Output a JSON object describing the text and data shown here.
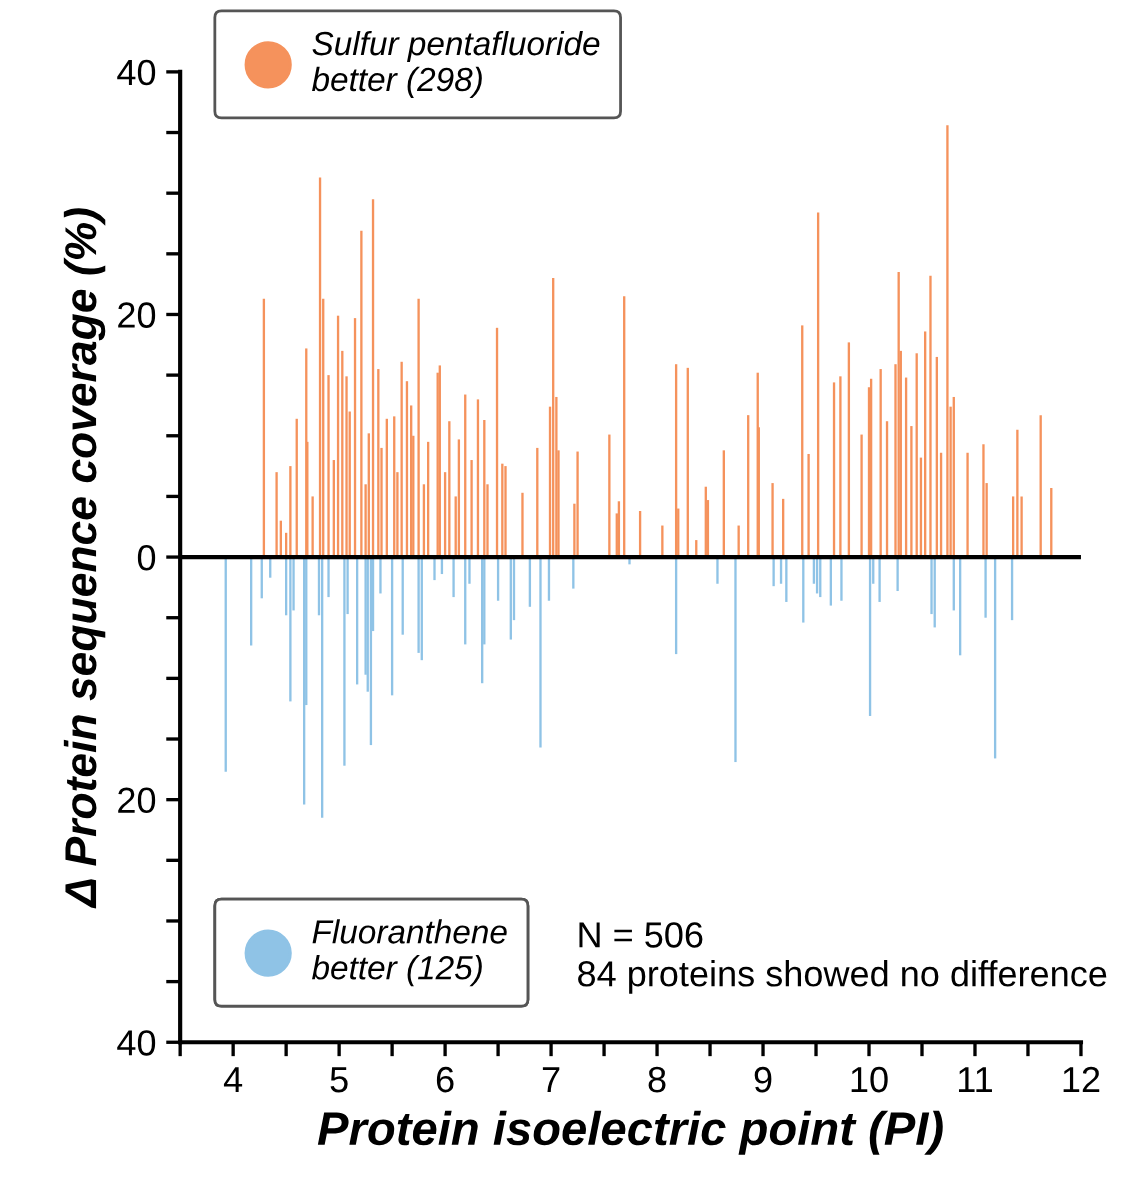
{
  "chart_data": {
    "type": "bar",
    "xlabel": "Protein isoelectric point (PI)",
    "ylabel": "Δ Protein sequence coverage (%)",
    "xlim": [
      3.5,
      12
    ],
    "ylim": [
      -40,
      40
    ],
    "xticks": [
      {
        "value": 3.5,
        "label": null
      },
      4,
      {
        "value": 4.5,
        "label": null
      },
      5,
      {
        "value": 5.5,
        "label": null
      },
      6,
      {
        "value": 6.5,
        "label": null
      },
      7,
      {
        "value": 7.5,
        "label": null
      },
      8,
      {
        "value": 8.5,
        "label": null
      },
      9,
      {
        "value": 9.5,
        "label": null
      },
      10,
      {
        "value": 10.5,
        "label": null
      },
      11,
      {
        "value": 11.5,
        "label": null
      },
      12
    ],
    "yticks": [
      {
        "value": -40,
        "label": "40"
      },
      {
        "value": -35,
        "label": null
      },
      {
        "value": -30,
        "label": null
      },
      {
        "value": -25,
        "label": null
      },
      {
        "value": -20,
        "label": "20"
      },
      {
        "value": -15,
        "label": null
      },
      {
        "value": -10,
        "label": null
      },
      {
        "value": -5,
        "label": null
      },
      0,
      {
        "value": 5,
        "label": null
      },
      {
        "value": 10,
        "label": null
      },
      {
        "value": 15,
        "label": null
      },
      20,
      {
        "value": 25,
        "label": null
      },
      {
        "value": 30,
        "label": null
      },
      {
        "value": 35,
        "label": null
      },
      40
    ],
    "grid": false,
    "legend": "left",
    "ref_lines": [
      {
        "axis": "y",
        "value": 0,
        "color": "#000000"
      }
    ],
    "annotations": [
      "N = 506\n84 proteins showed no difference"
    ],
    "series": [
      {
        "name": "Sulfur pentafluoride better (298)",
        "color": "#f5925c",
        "x": [
          4.29,
          4.41,
          4.45,
          4.5,
          4.54,
          4.6,
          4.69,
          4.7,
          4.75,
          4.82,
          4.85,
          4.9,
          4.95,
          4.99,
          5.03,
          5.07,
          5.1,
          5.15,
          5.21,
          5.25,
          5.28,
          5.32,
          5.37,
          5.4,
          5.45,
          5.52,
          5.55,
          5.59,
          5.64,
          5.68,
          5.7,
          5.75,
          5.8,
          5.84,
          5.93,
          5.95,
          6.0,
          6.04,
          6.1,
          6.13,
          6.19,
          6.25,
          6.31,
          6.37,
          6.4,
          6.49,
          6.54,
          6.57,
          6.73,
          6.87,
          6.99,
          7.02,
          7.05,
          7.07,
          7.22,
          7.25,
          7.55,
          7.62,
          7.64,
          7.69,
          7.84,
          8.05,
          8.18,
          8.2,
          8.29,
          8.37,
          8.46,
          8.48,
          8.63,
          8.77,
          8.86,
          8.95,
          8.96,
          9.09,
          9.19,
          9.37,
          9.43,
          9.52,
          9.67,
          9.73,
          9.81,
          9.93,
          10.0,
          10.02,
          10.11,
          10.17,
          10.25,
          10.28,
          10.3,
          10.35,
          10.4,
          10.45,
          10.49,
          10.53,
          10.58,
          10.64,
          10.68,
          10.74,
          10.77,
          10.8,
          10.93,
          11.08,
          11.11,
          11.36,
          11.4,
          11.44,
          11.62,
          11.72
        ],
        "values": [
          21.3,
          7,
          3,
          2,
          7.5,
          11.4,
          17.2,
          9.5,
          5,
          31.3,
          21.3,
          15,
          8,
          19.9,
          17,
          14.9,
          12,
          19.7,
          26.9,
          6,
          10.2,
          29.5,
          15.5,
          9,
          11.4,
          11.6,
          7,
          16.1,
          14.5,
          12.5,
          10,
          21.3,
          6,
          9.5,
          15.2,
          15.8,
          7,
          11.2,
          5,
          9.7,
          13.4,
          8,
          13,
          11.3,
          6,
          18.9,
          7.7,
          7.5,
          5.3,
          9,
          12.4,
          23,
          13.2,
          8.8,
          4.4,
          8.7,
          10.1,
          3.6,
          4.6,
          21.5,
          3.8,
          2.6,
          15.9,
          4,
          15.6,
          1.4,
          5.8,
          4.7,
          8.8,
          2.6,
          11.7,
          15.2,
          10.7,
          6.1,
          4.8,
          19.1,
          8.5,
          28.4,
          14.4,
          14.9,
          17.7,
          10.1,
          14,
          14.7,
          15.5,
          11.2,
          15.9,
          23.5,
          17,
          14.8,
          10.8,
          16.8,
          8.2,
          18.6,
          23.2,
          16.5,
          8.6,
          35.6,
          12.4,
          13.2,
          8.6,
          9.3,
          6.1,
          5,
          10.5,
          5,
          11.7,
          5.7
        ]
      },
      {
        "name": "Fluoranthene better (125)",
        "color": "#8fc3e6",
        "x": [
          3.93,
          4.17,
          4.27,
          4.35,
          4.5,
          4.54,
          4.57,
          4.67,
          4.69,
          4.81,
          4.84,
          4.9,
          5.05,
          5.08,
          5.17,
          5.25,
          5.27,
          5.3,
          5.32,
          5.39,
          5.5,
          5.6,
          5.75,
          5.78,
          5.9,
          5.97,
          6.08,
          6.19,
          6.23,
          6.35,
          6.37,
          6.5,
          6.62,
          6.65,
          6.8,
          6.9,
          6.98,
          7.21,
          7.74,
          8.18,
          8.57,
          8.74,
          9.1,
          9.17,
          9.22,
          9.38,
          9.48,
          9.51,
          9.54,
          9.64,
          9.74,
          10.01,
          10.04,
          10.1,
          10.27,
          10.59,
          10.62,
          10.8,
          10.86,
          11.1,
          11.19,
          11.35
        ],
        "values": [
          -17.7,
          -7.3,
          -3.4,
          -1.7,
          -4.8,
          -11.9,
          -4.4,
          -20.4,
          -12.2,
          -4.8,
          -21.5,
          -3.3,
          -17.2,
          -4.7,
          -10.5,
          -9.7,
          -11.1,
          -15.5,
          -6.1,
          -3,
          -11.4,
          -6.4,
          -7.9,
          -8.5,
          -1.9,
          -1.4,
          -3.3,
          -7.2,
          -2.2,
          -10.4,
          -7.2,
          -3.6,
          -6.8,
          -5.2,
          -4.1,
          -15.7,
          -3.6,
          -2.6,
          -0.6,
          -8,
          -2.2,
          -16.9,
          -2.4,
          -2.2,
          -3.7,
          -5.4,
          -2.2,
          -3,
          -3.3,
          -4,
          -3.6,
          -13.1,
          -2.2,
          -3.7,
          -2.8,
          -4.7,
          -5.8,
          -4.4,
          -8.1,
          -5,
          -16.6,
          -5.2
        ]
      }
    ]
  }
}
